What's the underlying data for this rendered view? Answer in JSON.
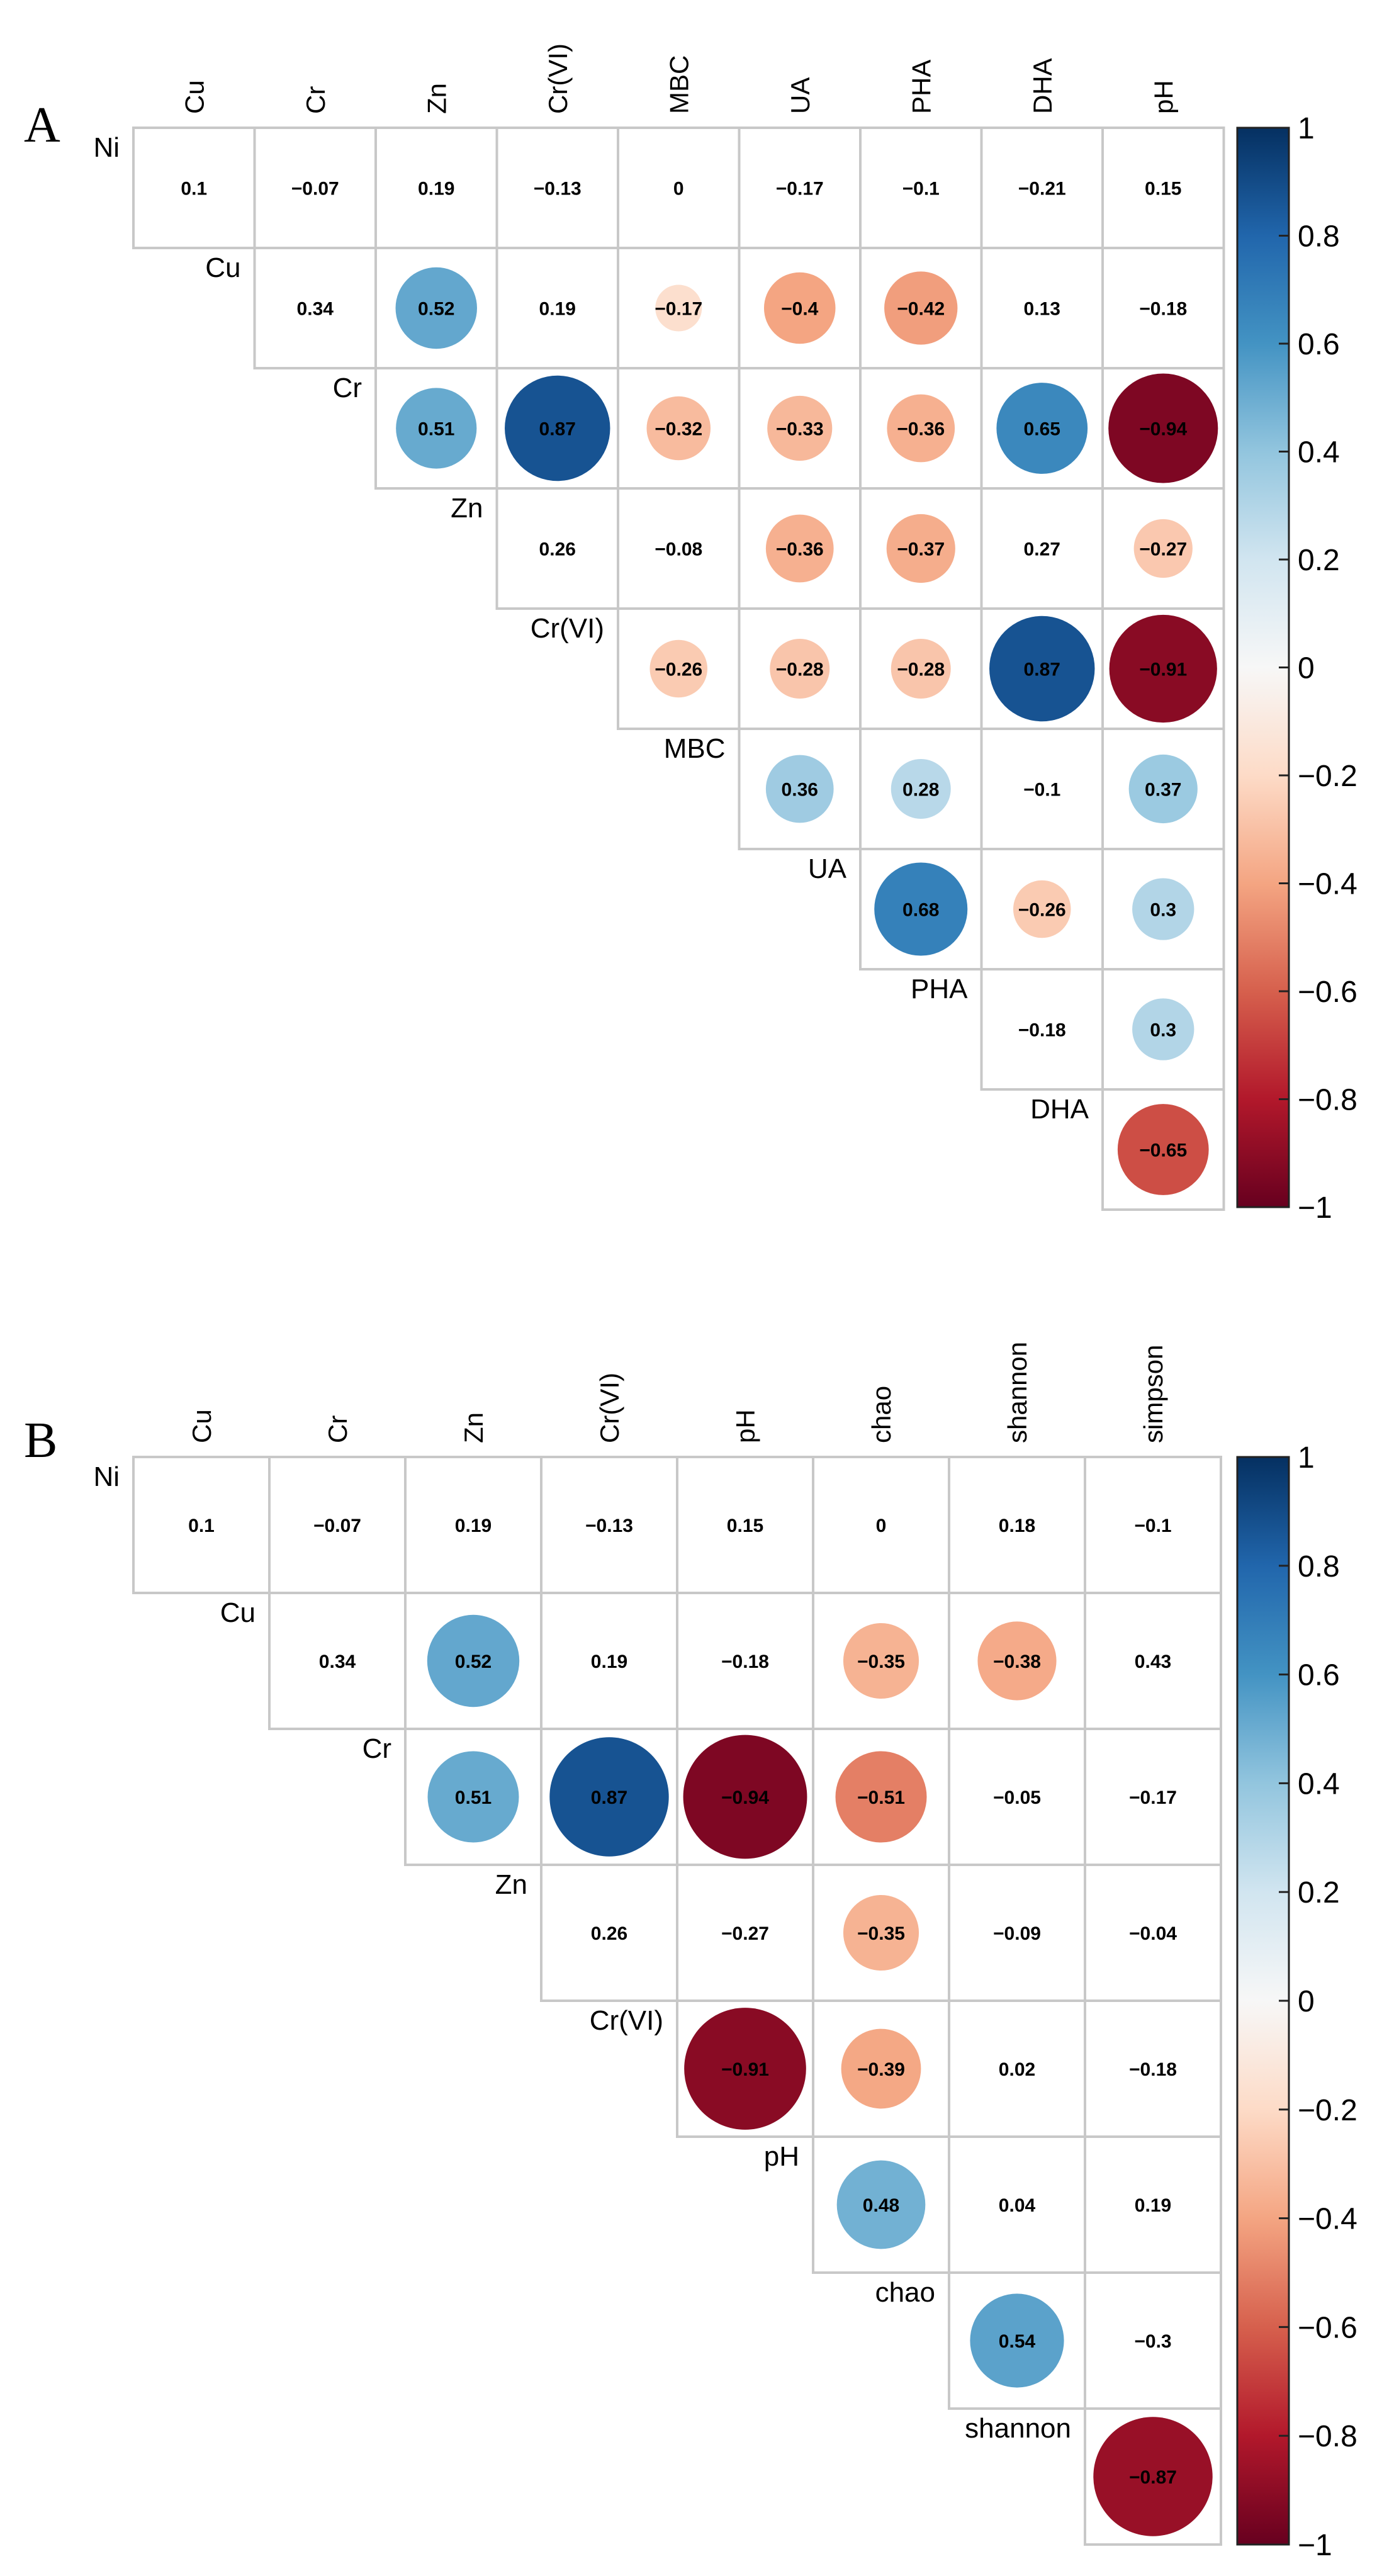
{
  "chart_data": [
    {
      "type": "heatmap",
      "panel_label": "A",
      "rows": [
        "Ni",
        "Cu",
        "Cr",
        "Zn",
        "Cr(VI)",
        "MBC",
        "UA",
        "PHA",
        "DHA"
      ],
      "columns": [
        "Cu",
        "Cr",
        "Zn",
        "Cr(VI)",
        "MBC",
        "UA",
        "PHA",
        "DHA",
        "pH"
      ],
      "values": [
        [
          0.1,
          -0.07,
          0.19,
          -0.13,
          0,
          -0.17,
          -0.1,
          -0.21,
          0.15
        ],
        [
          0.34,
          0.52,
          0.19,
          -0.17,
          -0.4,
          -0.42,
          0.13,
          -0.18
        ],
        [
          0.51,
          0.87,
          -0.32,
          -0.33,
          -0.36,
          0.65,
          -0.94
        ],
        [
          0.26,
          -0.08,
          -0.36,
          -0.37,
          0.27,
          -0.27
        ],
        [
          -0.26,
          -0.28,
          -0.28,
          0.87,
          -0.91
        ],
        [
          0.36,
          0.28,
          -0.1,
          0.37
        ],
        [
          0.68,
          -0.26,
          0.3
        ],
        [
          -0.18,
          0.3
        ],
        [
          -0.65
        ]
      ],
      "circle_shown": [
        [
          false,
          false,
          false,
          false,
          false,
          false,
          false,
          false,
          false
        ],
        [
          false,
          true,
          false,
          true,
          true,
          true,
          false,
          false
        ],
        [
          true,
          true,
          true,
          true,
          true,
          true,
          true
        ],
        [
          false,
          false,
          true,
          true,
          false,
          true
        ],
        [
          true,
          true,
          true,
          true,
          true
        ],
        [
          true,
          true,
          false,
          true
        ],
        [
          true,
          true,
          true
        ],
        [
          false,
          true
        ],
        [
          true
        ]
      ],
      "colorbar": {
        "range": [
          -1,
          1
        ],
        "ticks": [
          "1",
          "0.8",
          "0.6",
          "0.4",
          "0.2",
          "0",
          "-0.2",
          "-0.4",
          "-0.6",
          "-0.8",
          "-1"
        ]
      }
    },
    {
      "type": "heatmap",
      "panel_label": "B",
      "rows": [
        "Ni",
        "Cu",
        "Cr",
        "Zn",
        "Cr(VI)",
        "pH",
        "chao",
        "shannon"
      ],
      "columns": [
        "Cu",
        "Cr",
        "Zn",
        "Cr(VI)",
        "pH",
        "chao",
        "shannon",
        "simpson"
      ],
      "values": [
        [
          0.1,
          -0.07,
          0.19,
          -0.13,
          0.15,
          0,
          0.18,
          -0.1
        ],
        [
          0.34,
          0.52,
          0.19,
          -0.18,
          -0.35,
          -0.38,
          0.43
        ],
        [
          0.51,
          0.87,
          -0.94,
          -0.51,
          -0.05,
          -0.17
        ],
        [
          0.26,
          -0.27,
          -0.35,
          -0.09,
          -0.04
        ],
        [
          -0.91,
          -0.39,
          0.02,
          -0.18
        ],
        [
          0.48,
          0.04,
          0.19
        ],
        [
          0.54,
          -0.3
        ],
        [
          -0.87
        ]
      ],
      "circle_shown": [
        [
          false,
          false,
          false,
          false,
          false,
          false,
          false,
          false
        ],
        [
          false,
          true,
          false,
          false,
          true,
          true,
          false
        ],
        [
          true,
          true,
          true,
          true,
          false,
          false
        ],
        [
          false,
          false,
          true,
          false,
          false
        ],
        [
          true,
          true,
          false,
          false
        ],
        [
          true,
          false,
          false
        ],
        [
          true,
          false
        ],
        [
          true
        ]
      ],
      "colorbar": {
        "range": [
          -1,
          1
        ],
        "ticks": [
          "1",
          "0.8",
          "0.6",
          "0.4",
          "0.2",
          "0",
          "-0.2",
          "-0.4",
          "-0.6",
          "-0.8",
          "-1"
        ]
      }
    }
  ]
}
